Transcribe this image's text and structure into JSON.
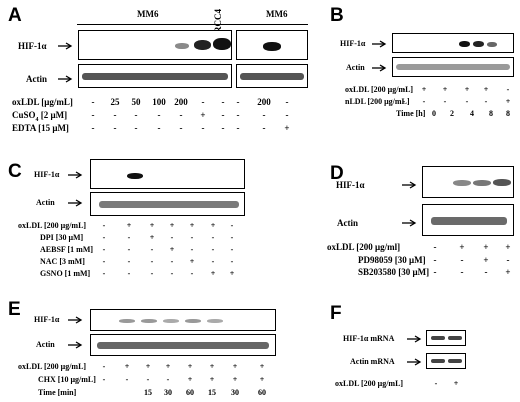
{
  "A": {
    "label": "A",
    "header_left": "MM6",
    "header_rcc": "RCC4",
    "header_right": "MM6",
    "row1": "HIF-1α",
    "row2": "Actin",
    "cond1": "oxLDL [μg/mL]",
    "cond2_pre": "CuSO",
    "cond2_sub": "4",
    "cond2_post": " [2 μM]",
    "cond3": "EDTA [15 μM]",
    "oxldl": [
      "-",
      "25",
      "50",
      "100",
      "200",
      "-",
      "-",
      "-",
      "200",
      "-"
    ],
    "cuso4": [
      "-",
      "-",
      "-",
      "-",
      "-",
      "+",
      "-",
      "-",
      "-",
      "-"
    ],
    "edta": [
      "-",
      "-",
      "-",
      "-",
      "-",
      "-",
      "-",
      "-",
      "-",
      "+"
    ]
  },
  "B": {
    "label": "B",
    "row1": "HIF-1α",
    "row2": "Actin",
    "cond1": "oxLDL [200 μg/mL]",
    "cond2": "nLDL [200 μg/mL]",
    "cond3": "Time [h]",
    "oxldl": [
      "-",
      "+",
      "+",
      "+",
      "+",
      "-"
    ],
    "nldl": [
      "-",
      "-",
      "-",
      "-",
      "-",
      "+"
    ],
    "time": [
      "0",
      "2",
      "4",
      "8",
      "8"
    ]
  },
  "C": {
    "label": "C",
    "row1": "HIF-1α",
    "row2": "Actin",
    "cond1": "oxLDL [200 μg/mL]",
    "cond2": "DPI   [30 μM]",
    "cond3": "AEBSF [1 mM]",
    "cond4": "NAC  [3 mM]",
    "cond5": "GSNO [1 mM]",
    "oxldl": [
      "-",
      "+",
      "+",
      "+",
      "+",
      "+",
      "-"
    ],
    "dpi": [
      "-",
      "-",
      "+",
      "-",
      "-",
      "-",
      "-"
    ],
    "aebsf": [
      "-",
      "-",
      "-",
      "+",
      "-",
      "-",
      "-"
    ],
    "nac": [
      "-",
      "-",
      "-",
      "-",
      "+",
      "-",
      "-"
    ],
    "gsno": [
      "-",
      "-",
      "-",
      "-",
      "-",
      "+",
      "+"
    ]
  },
  "D": {
    "label": "D",
    "row1": "HIF-1α",
    "row2": "Actin",
    "cond1": "oxLDL [200 μg/ml]",
    "cond2": "PD98059 [30 μM]",
    "cond3": "SB203580 [30 μM]",
    "oxldl": [
      "-",
      "+",
      "+",
      "+"
    ],
    "pd": [
      "-",
      "-",
      "+",
      "-"
    ],
    "sb": [
      "-",
      "-",
      "-",
      "+"
    ]
  },
  "E": {
    "label": "E",
    "row1": "HIF-1α",
    "row2": "Actin",
    "cond1": "oxLDL [200 μg/mL]",
    "cond2": "CHX [10 μg/mL]",
    "cond3": "Time [min]",
    "oxldl": [
      "-",
      "+",
      "+",
      "+",
      "+",
      "+",
      "+",
      "+"
    ],
    "chx": [
      "-",
      "-",
      "-",
      "-",
      "+",
      "+",
      "+",
      "+"
    ],
    "time": [
      "15",
      "30",
      "60",
      "15",
      "30",
      "60"
    ]
  },
  "F": {
    "label": "F",
    "row1": "HIF-1α mRNA",
    "row2": "Actin mRNA",
    "cond1": "oxLDL [200 μg/mL]",
    "oxldl": [
      "-",
      "+"
    ]
  }
}
